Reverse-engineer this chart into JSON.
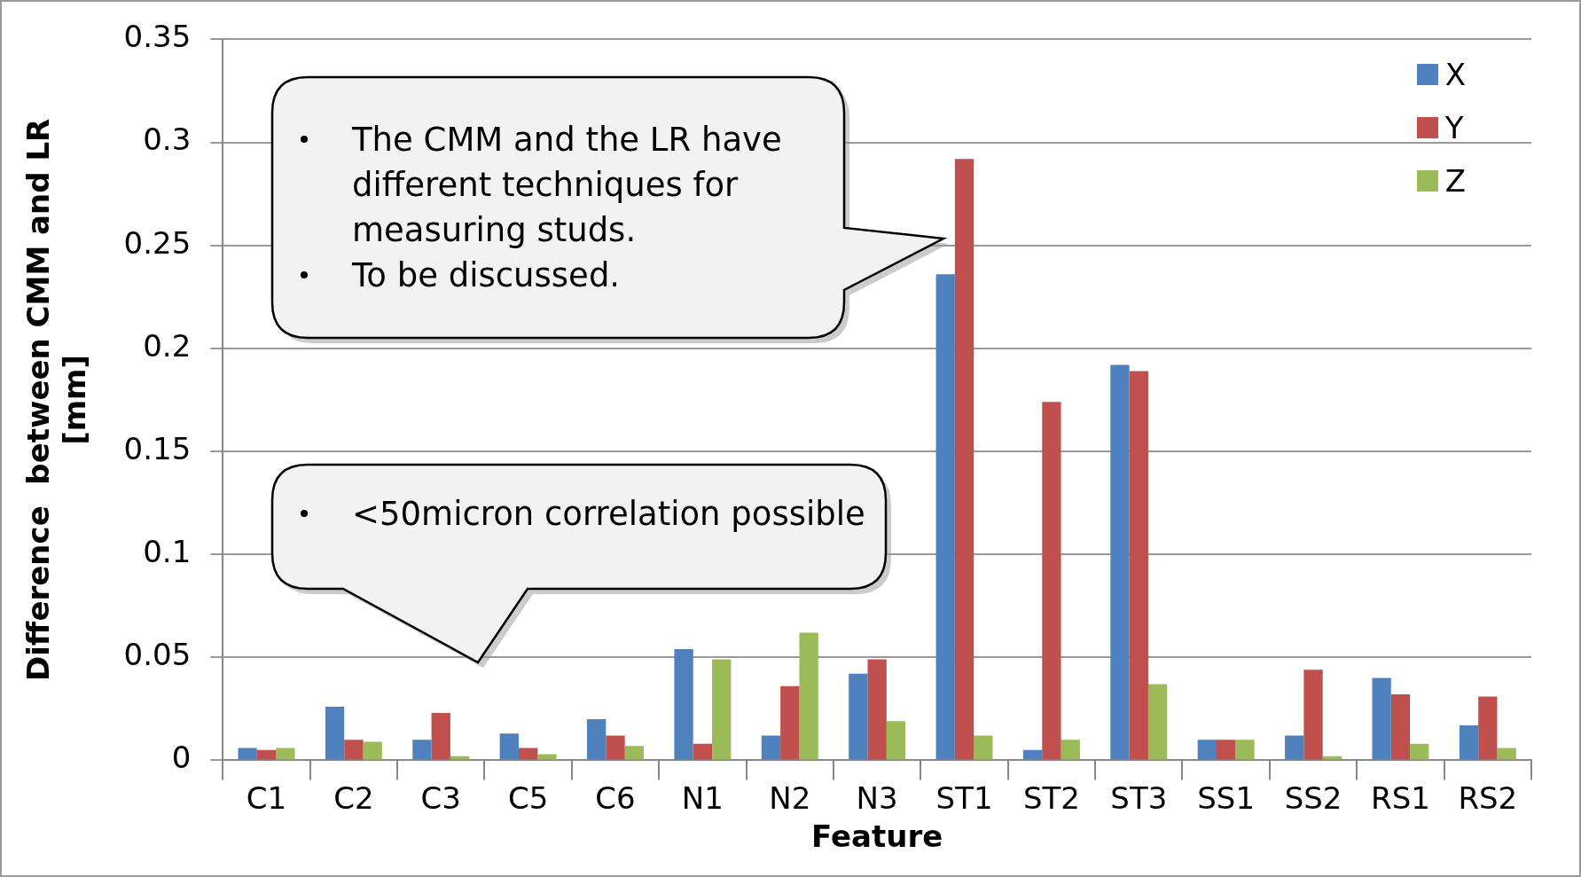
{
  "chart_data": {
    "type": "bar",
    "xlabel": "Feature",
    "ylabel": "Difference  between CMM and LR [mm]",
    "categories": [
      "C1",
      "C2",
      "C3",
      "C5",
      "C6",
      "N1",
      "N2",
      "N3",
      "ST1",
      "ST2",
      "ST3",
      "SS1",
      "SS2",
      "RS1",
      "RS2"
    ],
    "series": [
      {
        "name": "X",
        "color": "#4f81bd",
        "values": [
          0.006,
          0.026,
          0.01,
          0.013,
          0.02,
          0.054,
          0.012,
          0.042,
          0.236,
          0.005,
          0.192,
          0.01,
          0.012,
          0.04,
          0.017
        ]
      },
      {
        "name": "Y",
        "color": "#c0504d",
        "values": [
          0.005,
          0.01,
          0.023,
          0.006,
          0.012,
          0.008,
          0.036,
          0.049,
          0.292,
          0.174,
          0.189,
          0.01,
          0.044,
          0.032,
          0.031
        ]
      },
      {
        "name": "Z",
        "color": "#9bbb59",
        "values": [
          0.006,
          0.009,
          0.002,
          0.003,
          0.007,
          0.049,
          0.062,
          0.019,
          0.012,
          0.01,
          0.037,
          0.01,
          0.002,
          0.008,
          0.006
        ]
      }
    ],
    "ylim": [
      0,
      0.35
    ],
    "yticks": [
      0,
      0.05,
      0.1,
      0.15,
      0.2,
      0.25,
      0.3,
      0.35
    ],
    "grid": "y",
    "legend": "top right",
    "annotations": [
      "The CMM and the LR have different techniques for measuring studs.",
      "To be discussed.",
      "<50micron correlation possible"
    ]
  }
}
